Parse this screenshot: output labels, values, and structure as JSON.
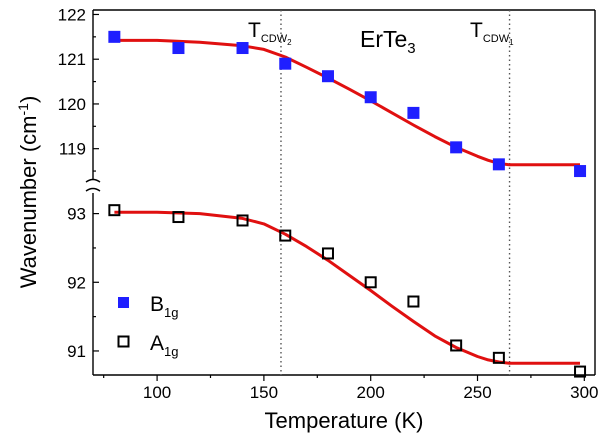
{
  "chart_data": {
    "type": "scatter",
    "title": "ErTe",
    "title_sub": "3",
    "xlabel": "Temperature (K)",
    "ylabel_main": "Wavenumber (cm",
    "ylabel_sup": "-1",
    "ylabel_close": ")",
    "xlim": [
      70,
      305
    ],
    "x_ticks": [
      100,
      150,
      200,
      250,
      300
    ],
    "x_ticklabels": [
      "100",
      "150",
      "200",
      "250",
      "300"
    ],
    "panels": [
      {
        "name": "upper",
        "ylim": [
          118.3,
          122.1
        ],
        "y_ticks": [
          119,
          120,
          121,
          122
        ],
        "y_ticklabels": [
          "119",
          "120",
          "121",
          "122"
        ]
      },
      {
        "name": "lower",
        "ylim": [
          90.65,
          93.3
        ],
        "y_ticks": [
          91,
          92,
          93
        ],
        "y_ticklabels": [
          "91",
          "92",
          "93"
        ]
      }
    ],
    "series": [
      {
        "name": "B",
        "name_sub": "1g",
        "panel": "upper",
        "marker": "filled-square",
        "color": "#1f1fff",
        "x": [
          80,
          110,
          140,
          160,
          180,
          200,
          220,
          240,
          260,
          298
        ],
        "y": [
          121.5,
          121.25,
          121.25,
          120.9,
          120.62,
          120.15,
          119.8,
          119.03,
          118.65,
          118.5
        ]
      },
      {
        "name": "A",
        "name_sub": "1g",
        "panel": "lower",
        "marker": "open-square",
        "color": "#000000",
        "x": [
          80,
          110,
          140,
          160,
          180,
          200,
          220,
          240,
          260,
          298
        ],
        "y": [
          93.05,
          92.95,
          92.9,
          92.68,
          92.42,
          92.0,
          91.72,
          91.08,
          90.9,
          90.7
        ]
      }
    ],
    "fits": [
      {
        "panel": "upper",
        "color": "#e01010",
        "x": [
          80,
          100,
          120,
          140,
          150,
          160,
          170,
          180,
          190,
          200,
          210,
          220,
          230,
          240,
          250,
          255,
          260,
          265,
          275,
          285,
          298
        ],
        "y": [
          121.42,
          121.42,
          121.38,
          121.3,
          121.22,
          121.05,
          120.82,
          120.58,
          120.33,
          120.07,
          119.8,
          119.53,
          119.27,
          119.03,
          118.83,
          118.74,
          118.67,
          118.64,
          118.64,
          118.64,
          118.64
        ]
      },
      {
        "panel": "lower",
        "color": "#e01010",
        "x": [
          80,
          100,
          120,
          140,
          150,
          160,
          170,
          180,
          190,
          200,
          210,
          220,
          230,
          240,
          250,
          255,
          260,
          265,
          275,
          285,
          298
        ],
        "y": [
          93.02,
          93.02,
          93.0,
          92.93,
          92.85,
          92.7,
          92.52,
          92.32,
          92.1,
          91.88,
          91.65,
          91.43,
          91.22,
          91.05,
          90.92,
          90.87,
          90.84,
          90.82,
          90.82,
          90.82,
          90.82
        ]
      }
    ],
    "vertical_lines": [
      {
        "x": 158,
        "label": "T",
        "label_sub": "CDW",
        "label_subsub": "2"
      },
      {
        "x": 265,
        "label": "T",
        "label_sub": "CDW",
        "label_subsub": "1"
      }
    ],
    "legend_position": "bottom-left",
    "grid": false
  }
}
